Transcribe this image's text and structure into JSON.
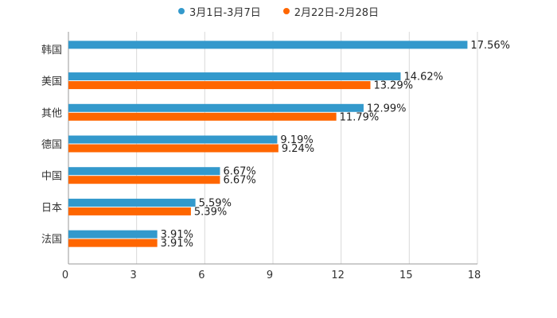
{
  "chart_data": {
    "type": "bar",
    "orientation": "horizontal",
    "title": "",
    "xlabel": "",
    "ylabel": "",
    "xlim": [
      0,
      18
    ],
    "xticks": [
      "0",
      "3",
      "6",
      "9",
      "12",
      "15",
      "18"
    ],
    "grid": true,
    "legend_position": "top-center",
    "categories": [
      "韩国",
      "美国",
      "其他",
      "德国",
      "中国",
      "日本",
      "法国"
    ],
    "series": [
      {
        "name": "3月1日-3月7日",
        "color": "#3399cc",
        "values": [
          17.56,
          14.62,
          12.99,
          9.19,
          6.67,
          5.59,
          3.91
        ],
        "labels": [
          "17.56%",
          "14.62%",
          "12.99%",
          "9.19%",
          "6.67%",
          "5.59%",
          "3.91%"
        ]
      },
      {
        "name": "2月22日-2月28日",
        "color": "#ff6600",
        "values": [
          null,
          13.29,
          11.79,
          9.24,
          6.67,
          5.39,
          3.91
        ],
        "labels": [
          "",
          "13.29%",
          "11.79%",
          "9.24%",
          "6.67%",
          "5.39%",
          "3.91%"
        ]
      }
    ]
  }
}
